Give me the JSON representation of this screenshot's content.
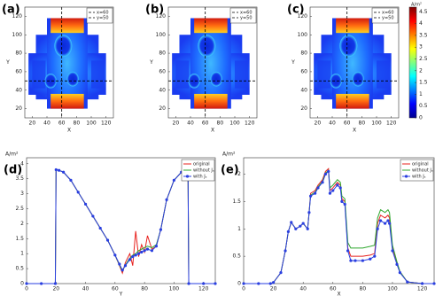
{
  "chart_data": [
    {
      "type": "heatmap",
      "panel_label": "(a)",
      "x_label": "X",
      "y_label": "Y",
      "xlim": [
        10,
        130
      ],
      "ylim": [
        10,
        130
      ],
      "xticks": [
        20,
        40,
        60,
        80,
        100,
        120
      ],
      "yticks": [
        20,
        40,
        60,
        80,
        100,
        120
      ],
      "reference_lines": [
        {
          "name": "x=60",
          "axis": "x",
          "value": 60
        },
        {
          "name": "y=50",
          "axis": "y",
          "value": 50
        }
      ]
    },
    {
      "type": "heatmap",
      "panel_label": "(b)",
      "x_label": "X",
      "y_label": "Y",
      "xlim": [
        10,
        130
      ],
      "ylim": [
        10,
        130
      ],
      "xticks": [
        20,
        40,
        60,
        80,
        100,
        120
      ],
      "yticks": [
        20,
        40,
        60,
        80,
        100,
        120
      ],
      "reference_lines": [
        {
          "name": "x=60",
          "axis": "x",
          "value": 60
        },
        {
          "name": "y=50",
          "axis": "y",
          "value": 50
        }
      ]
    },
    {
      "type": "heatmap",
      "panel_label": "(c)",
      "x_label": "X",
      "y_label": "Y",
      "xlim": [
        10,
        130
      ],
      "ylim": [
        10,
        130
      ],
      "xticks": [
        20,
        40,
        60,
        80,
        100,
        120
      ],
      "yticks": [
        20,
        40,
        60,
        80,
        100,
        120
      ],
      "reference_lines": [
        {
          "name": "x=60",
          "axis": "x",
          "value": 60
        },
        {
          "name": "y=50",
          "axis": "y",
          "value": 50
        }
      ],
      "colorbar": {
        "label": "A/m²",
        "lim": [
          0,
          4.7
        ],
        "ticks": [
          0,
          0.5,
          1,
          1.5,
          2,
          2.5,
          3,
          3.5,
          4,
          4.5
        ]
      }
    },
    {
      "type": "line",
      "panel_label": "(d)",
      "x_label": "Y",
      "y_label": "A/m²",
      "xlim": [
        0,
        128
      ],
      "ylim": [
        0,
        4.2
      ],
      "xticks": [
        0,
        20,
        40,
        60,
        80,
        100,
        120
      ],
      "yticks": [
        0,
        0.5,
        1,
        1.5,
        2,
        2.5,
        3,
        3.5,
        4
      ],
      "x": [
        0,
        10,
        19.5,
        20,
        22,
        25,
        30,
        35,
        40,
        45,
        50,
        55,
        60,
        63,
        65,
        67,
        70,
        72,
        74,
        76,
        78,
        80,
        82,
        85,
        88,
        91,
        95,
        100,
        105,
        108,
        109.5,
        110,
        120,
        128
      ],
      "series": [
        {
          "name": "original",
          "color": "#e8221e",
          "marker": false,
          "values": [
            0,
            0,
            0,
            3.8,
            3.78,
            3.72,
            3.45,
            3.05,
            2.65,
            2.25,
            1.85,
            1.45,
            0.95,
            0.6,
            0.35,
            0.7,
            1.0,
            0.6,
            1.75,
            0.9,
            1.3,
            1.05,
            1.6,
            1.15,
            1.25,
            1.8,
            2.8,
            3.45,
            3.72,
            3.8,
            3.8,
            0,
            0,
            0
          ]
        },
        {
          "name": "without Jₛ",
          "color": "#2fa82f",
          "marker": false,
          "values": [
            0,
            0,
            0,
            3.8,
            3.78,
            3.72,
            3.45,
            3.05,
            2.65,
            2.25,
            1.85,
            1.45,
            0.95,
            0.62,
            0.42,
            0.62,
            0.85,
            0.95,
            1.0,
            1.1,
            1.15,
            1.2,
            1.25,
            1.2,
            1.3,
            1.8,
            2.8,
            3.45,
            3.72,
            3.8,
            3.8,
            0,
            0,
            0
          ]
        },
        {
          "name": "with Jₛ",
          "color": "#2a3fe0",
          "marker": true,
          "values": [
            0,
            0,
            0,
            3.8,
            3.78,
            3.72,
            3.45,
            3.05,
            2.65,
            2.25,
            1.85,
            1.45,
            0.95,
            0.65,
            0.45,
            0.6,
            0.8,
            0.9,
            0.95,
            1.0,
            1.05,
            1.1,
            1.15,
            1.1,
            1.25,
            1.8,
            2.8,
            3.45,
            3.72,
            3.8,
            3.8,
            0,
            0,
            0
          ]
        }
      ]
    },
    {
      "type": "line",
      "panel_label": "(e)",
      "x_label": "X",
      "y_label": "A/m²",
      "xlim": [
        0,
        128
      ],
      "ylim": [
        0,
        2.3
      ],
      "xticks": [
        0,
        20,
        40,
        60,
        80,
        100,
        120
      ],
      "yticks": [
        0,
        0.5,
        1,
        1.5,
        2
      ],
      "x": [
        0,
        10,
        18,
        20,
        25,
        28,
        30,
        32,
        35,
        38,
        40,
        43,
        44,
        45,
        48,
        50,
        53,
        55,
        57,
        58,
        60,
        63,
        65,
        66,
        68,
        70,
        72,
        75,
        80,
        85,
        88,
        90,
        92,
        95,
        97,
        98,
        100,
        103,
        105,
        110,
        120,
        128
      ],
      "series": [
        {
          "name": "original",
          "color": "#e8221e",
          "marker": false,
          "values": [
            0,
            0,
            0,
            0.02,
            0.2,
            0.6,
            0.95,
            1.12,
            1.0,
            1.05,
            1.1,
            1.0,
            1.3,
            1.65,
            1.7,
            1.8,
            1.9,
            2.05,
            2.1,
            1.7,
            1.75,
            1.85,
            1.8,
            1.55,
            1.5,
            0.65,
            0.5,
            0.5,
            0.5,
            0.52,
            0.55,
            1.1,
            1.25,
            1.2,
            1.25,
            1.2,
            0.65,
            0.38,
            0.22,
            0.03,
            0,
            0
          ]
        },
        {
          "name": "without Jₛ",
          "color": "#2fa82f",
          "marker": false,
          "values": [
            0,
            0,
            0,
            0.02,
            0.2,
            0.6,
            0.95,
            1.12,
            1.0,
            1.05,
            1.1,
            1.0,
            1.3,
            1.62,
            1.67,
            1.77,
            1.87,
            2.02,
            2.07,
            1.75,
            1.8,
            1.9,
            1.85,
            1.6,
            1.55,
            0.75,
            0.65,
            0.65,
            0.65,
            0.68,
            0.7,
            1.2,
            1.35,
            1.3,
            1.35,
            1.3,
            0.7,
            0.4,
            0.22,
            0.03,
            0,
            0
          ]
        },
        {
          "name": "with Jₛ",
          "color": "#2a3fe0",
          "marker": true,
          "values": [
            0,
            0,
            0,
            0.02,
            0.2,
            0.6,
            0.95,
            1.12,
            1.0,
            1.05,
            1.1,
            1.0,
            1.3,
            1.6,
            1.65,
            1.75,
            1.85,
            2.0,
            2.05,
            1.65,
            1.7,
            1.8,
            1.75,
            1.5,
            1.45,
            0.6,
            0.42,
            0.42,
            0.42,
            0.45,
            0.5,
            1.0,
            1.15,
            1.1,
            1.15,
            1.1,
            0.6,
            0.35,
            0.2,
            0.03,
            0,
            0
          ]
        }
      ]
    }
  ]
}
